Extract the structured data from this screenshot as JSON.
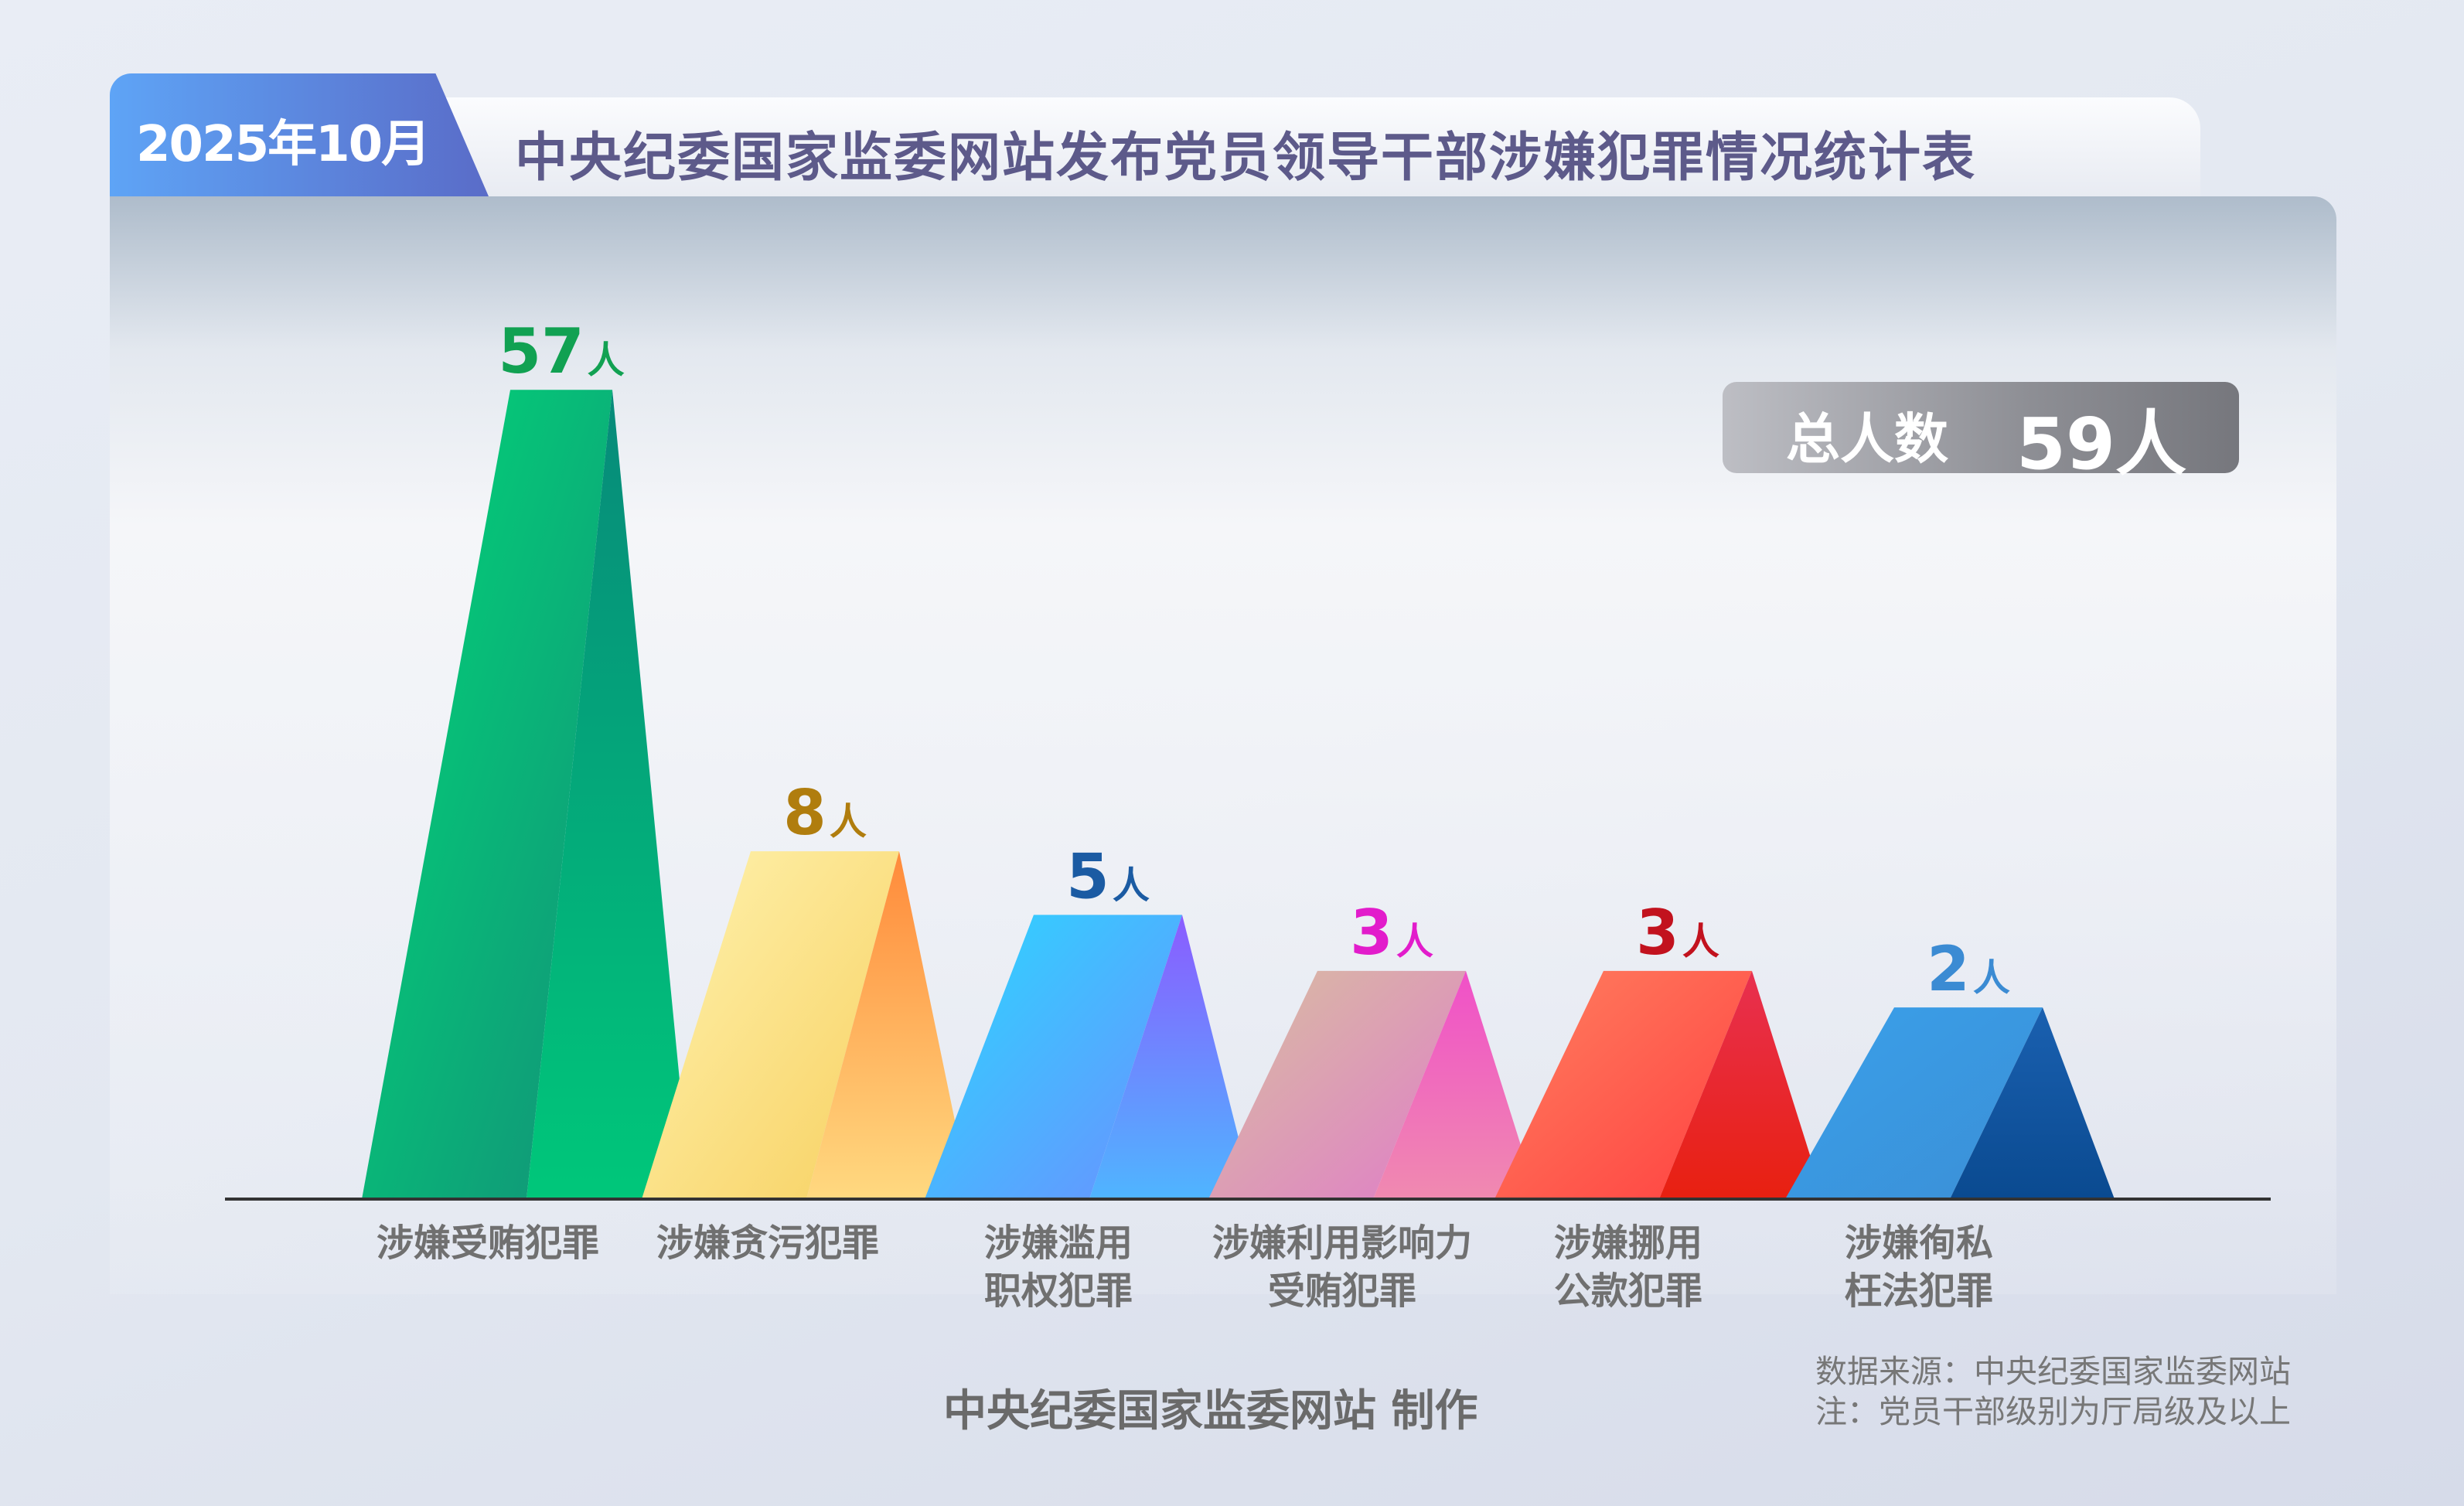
{
  "header": {
    "date": "2025年10月",
    "title": "中央纪委国家监委网站发布党员领导干部涉嫌犯罪情况统计表"
  },
  "total": {
    "label": "总人数",
    "value": "59人"
  },
  "chart_data": {
    "type": "bar",
    "style": "3d-pyramid",
    "unit": "人",
    "categories": [
      [
        "涉嫌受贿犯罪"
      ],
      [
        "涉嫌贪污犯罪"
      ],
      [
        "涉嫌滥用",
        "职权犯罪"
      ],
      [
        "涉嫌利用影响力",
        "受贿犯罪"
      ],
      [
        "涉嫌挪用",
        "公款犯罪"
      ],
      [
        "涉嫌徇私",
        "枉法犯罪"
      ]
    ],
    "values": [
      57,
      8,
      5,
      3,
      3,
      2
    ],
    "label_colors": [
      "#11a152",
      "#b07d0e",
      "#1b5ba3",
      "#e21ccb",
      "#c2121e",
      "#3b8bd3"
    ],
    "face_colors": [
      [
        "#00da78",
        "#139078",
        "#078a7a",
        "#00c77a"
      ],
      [
        "#fff3b0",
        "#f7d060",
        "#ff8a3a",
        "#ffd980"
      ],
      [
        "#2ad8ff",
        "#6c8fff",
        "#8b5cff",
        "#4fb5ff"
      ],
      [
        "#d8c0a0",
        "#e07cc8",
        "#f050c8",
        "#f08ab0"
      ],
      [
        "#ff8060",
        "#ff4040",
        "#e83050",
        "#e82010"
      ],
      [
        "#3aa0ea",
        "#3b8fd6",
        "#1a60b0",
        "#0a4a90"
      ]
    ],
    "scale": "not-to-scale",
    "grid": false
  },
  "footer": {
    "credit": "中央纪委国家监委网站 制作",
    "source": "数据来源：中央纪委国家监委网站",
    "note": "注：党员干部级别为厅局级及以上"
  }
}
